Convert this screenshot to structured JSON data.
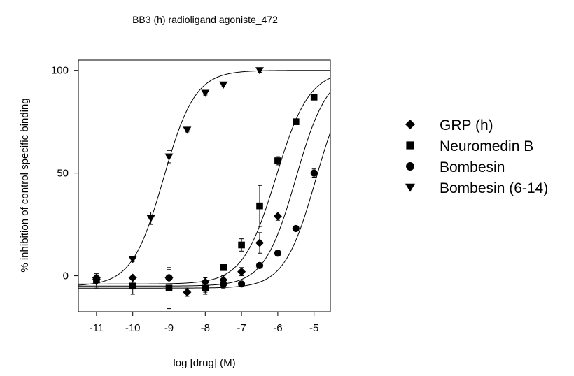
{
  "chart_data": {
    "type": "scatter",
    "title": "BB3 (h) radioligand agoniste_472",
    "xlabel": "log [drug] (M)",
    "ylabel": "% inhibition of control specific binding",
    "xlim": [
      -11.5,
      -4.55
    ],
    "ylim": [
      -17.5,
      105
    ],
    "xticks": [
      -11,
      -10,
      -9,
      -8,
      -7,
      -6,
      -5
    ],
    "xtick_labels": [
      "-11",
      "-10",
      "-9",
      "-8",
      "-7",
      "-6",
      "-5"
    ],
    "yticks": [
      0,
      50,
      100
    ],
    "ytick_labels": [
      "0",
      "50",
      "100"
    ],
    "grid": false,
    "legend_position": "right",
    "series": [
      {
        "name": "GRP (h)",
        "marker": "diamond",
        "points": [
          {
            "x": -11,
            "y": -1,
            "err": 2
          },
          {
            "x": -10,
            "y": -1,
            "err": 0
          },
          {
            "x": -9,
            "y": -1,
            "err": 1
          },
          {
            "x": -8.5,
            "y": -8,
            "err": 2
          },
          {
            "x": -8,
            "y": -3,
            "err": 2
          },
          {
            "x": -7.5,
            "y": -2,
            "err": 2
          },
          {
            "x": -7,
            "y": 2,
            "err": 2
          },
          {
            "x": -6.5,
            "y": 16,
            "err": 5
          },
          {
            "x": -6,
            "y": 29,
            "err": 2
          }
        ],
        "curve": {
          "bottom": -5,
          "top": 100,
          "log_ec50": -5.5,
          "hill": 1.0
        }
      },
      {
        "name": "Neuromedin B",
        "marker": "square",
        "points": [
          {
            "x": -11,
            "y": -2,
            "err": 0
          },
          {
            "x": -10,
            "y": -5,
            "err": 4
          },
          {
            "x": -9,
            "y": -6,
            "err": 10
          },
          {
            "x": -8,
            "y": -6,
            "err": 3
          },
          {
            "x": -7.5,
            "y": 4,
            "err": 1
          },
          {
            "x": -7,
            "y": 15,
            "err": 3
          },
          {
            "x": -6.5,
            "y": 34,
            "err": 10
          },
          {
            "x": -6,
            "y": 56,
            "err": 2
          },
          {
            "x": -5.5,
            "y": 75,
            "err": 1
          },
          {
            "x": -5,
            "y": 87,
            "err": 1
          }
        ],
        "curve": {
          "bottom": -4,
          "top": 100,
          "log_ec50": -6.05,
          "hill": 0.95
        }
      },
      {
        "name": "Bombesin",
        "marker": "circle",
        "points": [
          {
            "x": -9,
            "y": -1,
            "err": 4
          },
          {
            "x": -8,
            "y": -6,
            "err": 2
          },
          {
            "x": -7.5,
            "y": -4,
            "err": 2
          },
          {
            "x": -7,
            "y": -4,
            "err": 1
          },
          {
            "x": -6.5,
            "y": 5,
            "err": 1
          },
          {
            "x": -6,
            "y": 11,
            "err": 1
          },
          {
            "x": -5.5,
            "y": 23,
            "err": 1
          },
          {
            "x": -5,
            "y": 50,
            "err": 2
          }
        ],
        "curve": {
          "bottom": -6,
          "top": 100,
          "log_ec50": -4.95,
          "hill": 1.0
        }
      },
      {
        "name": "Bombesin (6-14)",
        "marker": "triangle-down",
        "points": [
          {
            "x": -11,
            "y": -3,
            "err": 3
          },
          {
            "x": -10,
            "y": 8,
            "err": 1
          },
          {
            "x": -9.5,
            "y": 28,
            "err": 3
          },
          {
            "x": -9,
            "y": 58,
            "err": 3
          },
          {
            "x": -8.5,
            "y": 71,
            "err": 1
          },
          {
            "x": -8,
            "y": 89,
            "err": 1
          },
          {
            "x": -7.5,
            "y": 93,
            "err": 1
          },
          {
            "x": -6.5,
            "y": 100,
            "err": 1
          }
        ],
        "curve": {
          "bottom": -5,
          "top": 100,
          "log_ec50": -9.15,
          "hill": 1.0
        }
      }
    ]
  }
}
